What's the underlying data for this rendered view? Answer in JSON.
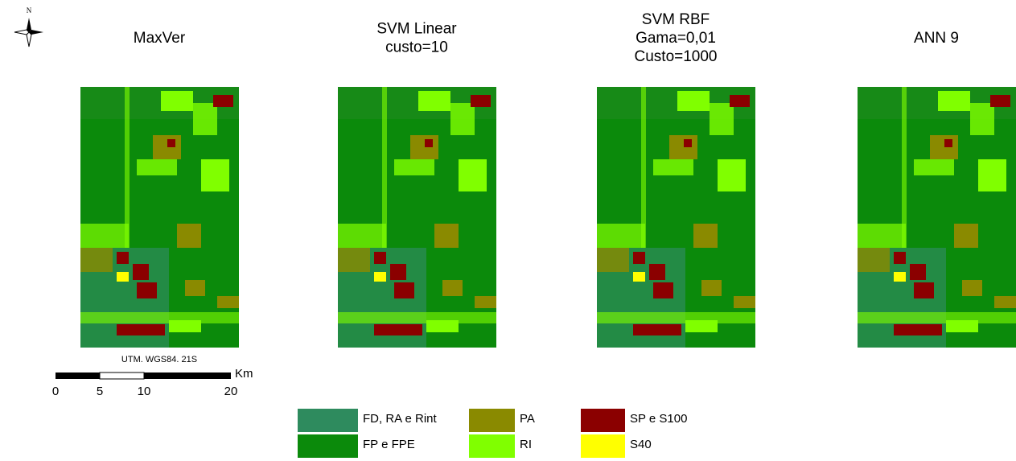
{
  "north": "N",
  "panels": [
    {
      "title": [
        "MaxVer"
      ]
    },
    {
      "title": [
        "SVM Linear",
        "custo=10"
      ]
    },
    {
      "title": [
        "SVM RBF",
        "Gama=0,01",
        "Custo=1000"
      ]
    },
    {
      "title": [
        "ANN 9"
      ]
    }
  ],
  "projection": "UTM. WGS84. 21S",
  "scale_bar": {
    "unit": "Km",
    "labels": [
      "0",
      "5",
      "10",
      "20"
    ]
  },
  "legend": [
    {
      "label": "FD, RA e Rint",
      "color": "#2e8b5e"
    },
    {
      "label": "FP e FPE",
      "color": "#0b8a0b"
    },
    {
      "label": "PA",
      "color": "#8a8a00"
    },
    {
      "label": "RI",
      "color": "#80ff00"
    },
    {
      "label": "SP e S100",
      "color": "#8b0000"
    },
    {
      "label": "S40",
      "color": "#ffff00"
    }
  ]
}
